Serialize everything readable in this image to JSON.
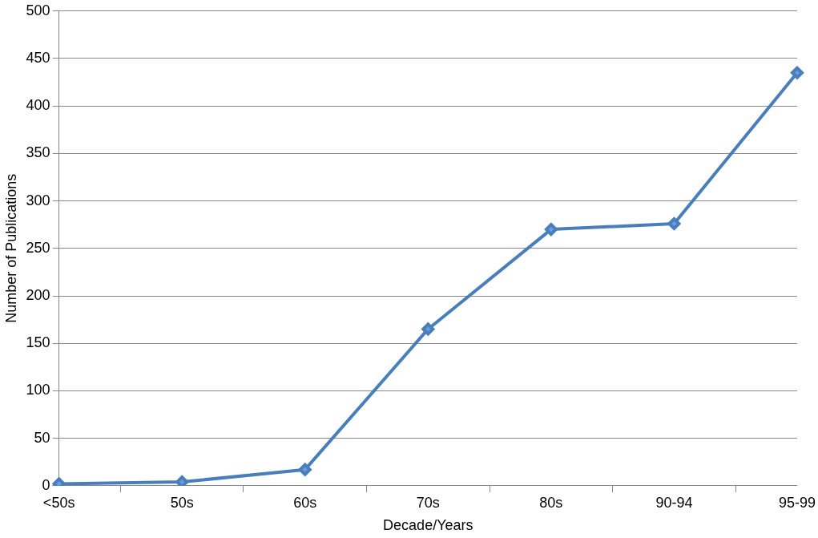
{
  "chart_data": {
    "type": "line",
    "xlabel": "Decade/Years",
    "ylabel": "Number of Publications",
    "categories": [
      "<50s",
      "50s",
      "60s",
      "70s",
      "80s",
      "90-94",
      "95-99"
    ],
    "series": [
      {
        "color": "#4a7ebb",
        "values": [
          2,
          4,
          17,
          165,
          270,
          276,
          435
        ]
      }
    ],
    "ylim": [
      0,
      500
    ],
    "yticks": [
      0,
      50,
      100,
      150,
      200,
      250,
      300,
      350,
      400,
      450,
      500
    ],
    "grid": "y",
    "legend": false,
    "marker": "diamond",
    "line_style": "solid"
  }
}
